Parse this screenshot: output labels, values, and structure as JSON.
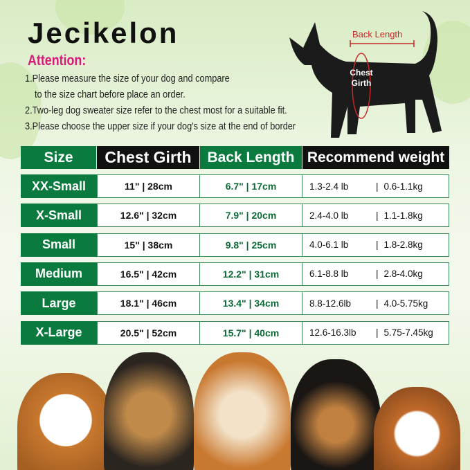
{
  "brand": "Jecikelon",
  "attention": "Attention:",
  "notes": [
    "1.Please measure the size of your dog and compare",
    "to the size chart before place an order.",
    "2.Two-leg dog sweater size refer to the chest most for a suitable fit.",
    "3.Please choose the upper size if your dog's size at the end of border"
  ],
  "diagram": {
    "back_length": "Back Length",
    "chest_girth_1": "Chest",
    "chest_girth_2": "Girth"
  },
  "table": {
    "headers": [
      "Size",
      "Chest Girth",
      "Back Length",
      "Recommend weight"
    ],
    "rows": [
      {
        "size": "XX-Small",
        "chest": "11\" | 28cm",
        "back": "6.7\" | 17cm",
        "lb": "1.3-2.4 lb",
        "kg": "0.6-1.1kg"
      },
      {
        "size": "X-Small",
        "chest": "12.6\" | 32cm",
        "back": "7.9\" | 20cm",
        "lb": "2.4-4.0 lb",
        "kg": "1.1-1.8kg"
      },
      {
        "size": "Small",
        "chest": "15\" | 38cm",
        "back": "9.8\" | 25cm",
        "lb": "4.0-6.1 lb",
        "kg": "1.8-2.8kg"
      },
      {
        "size": "Medium",
        "chest": "16.5\" | 42cm",
        "back": "12.2\" | 31cm",
        "lb": "6.1-8.8 lb",
        "kg": "2.8-4.0kg"
      },
      {
        "size": "Large",
        "chest": "18.1\" | 46cm",
        "back": "13.4\" | 34cm",
        "lb": "8.8-12.6lb",
        "kg": "4.0-5.75kg"
      },
      {
        "size": "X-Large",
        "chest": "20.5\" | 52cm",
        "back": "15.7\" | 40cm",
        "lb": "12.6-16.3lb",
        "kg": "5.75-7.45kg"
      }
    ]
  },
  "colors": {
    "green": "#0b7a3e",
    "black": "#111111",
    "attention": "#d81b7a",
    "measure": "#c62828"
  }
}
